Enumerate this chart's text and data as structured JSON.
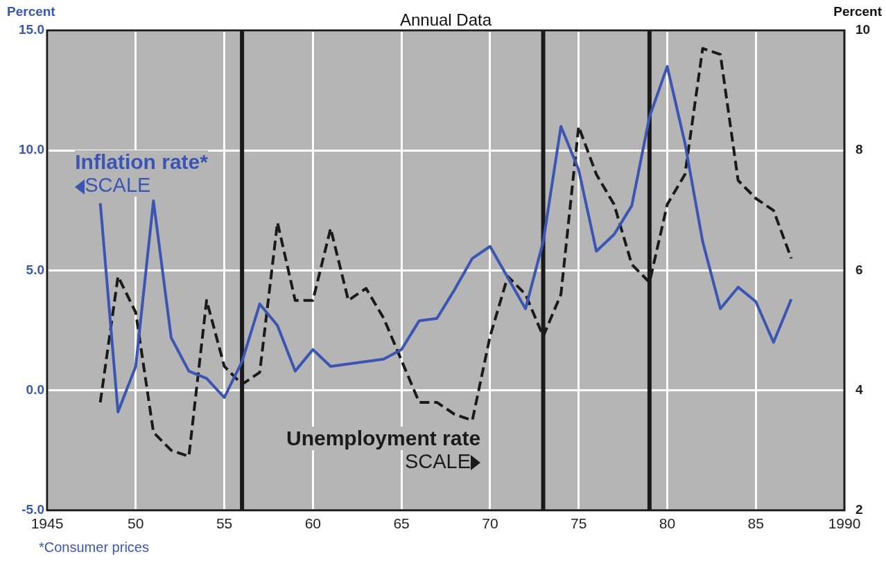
{
  "chart_data": {
    "type": "line",
    "title": "Annual Data",
    "ylabel": "Percent",
    "y2label": "Percent",
    "annotations": [
      "SCALE",
      "SCALE",
      "*Consumer prices"
    ],
    "x": [
      1948,
      1949,
      1950,
      1951,
      1952,
      1953,
      1954,
      1955,
      1956,
      1957,
      1958,
      1959,
      1960,
      1961,
      1962,
      1963,
      1964,
      1965,
      1966,
      1967,
      1968,
      1969,
      1970,
      1971,
      1972,
      1973,
      1974,
      1975,
      1976,
      1977,
      1978,
      1979,
      1980,
      1981,
      1982,
      1983,
      1984,
      1985,
      1986,
      1987
    ],
    "series": [
      {
        "name": "Inflation rate*",
        "color": "#3b55b3",
        "line_style": "solid",
        "values": [
          7.8,
          -0.9,
          1.0,
          7.9,
          2.2,
          0.8,
          0.5,
          -0.3,
          1.2,
          3.6,
          2.7,
          0.8,
          1.7,
          1.0,
          1.1,
          1.2,
          1.3,
          1.7,
          2.9,
          3.0,
          4.2,
          5.5,
          6.0,
          4.7,
          3.4,
          6.2,
          11.0,
          9.2,
          5.8,
          6.5,
          7.7,
          11.4,
          13.5,
          10.3,
          6.2,
          3.4,
          4.3,
          3.7,
          2.0,
          3.8
        ]
      },
      {
        "name": "Unemployment rate",
        "color": "#1a1a1a",
        "axis": "y2",
        "line_style": "dashed",
        "values": [
          3.8,
          5.9,
          5.3,
          3.3,
          3.0,
          2.9,
          5.5,
          4.4,
          4.1,
          4.3,
          6.8,
          5.5,
          5.5,
          6.7,
          5.5,
          5.7,
          5.2,
          4.5,
          3.8,
          3.8,
          3.6,
          3.5,
          4.9,
          5.9,
          5.6,
          4.9,
          5.6,
          8.4,
          7.6,
          7.1,
          6.1,
          5.8,
          7.1,
          7.6,
          9.7,
          9.6,
          7.5,
          7.2,
          7.0,
          6.2
        ]
      }
    ],
    "xlim": [
      1945,
      1990
    ],
    "xticks": [
      1945,
      {
        "value": 1950,
        "label": "50"
      },
      {
        "value": 1955,
        "label": "55"
      },
      {
        "value": 1960,
        "label": "60"
      },
      {
        "value": 1965,
        "label": "65"
      },
      {
        "value": 1970,
        "label": "70"
      },
      {
        "value": 1975,
        "label": "75"
      },
      {
        "value": 1980,
        "label": "80"
      },
      {
        "value": 1985,
        "label": "85"
      },
      1990
    ],
    "ylim": [
      -5,
      15
    ],
    "yticks": [
      {
        "value": -5,
        "label": "-5.0"
      },
      {
        "value": 0,
        "label": "0.0"
      },
      {
        "value": 5,
        "label": "5.0"
      },
      {
        "value": 10,
        "label": "10.0"
      },
      {
        "value": 15,
        "label": "15.0"
      }
    ],
    "y2lim": [
      2,
      10
    ],
    "y2ticks": [
      2,
      4,
      6,
      8,
      10
    ],
    "ref_lines": [
      {
        "axis": "x",
        "value": 1956,
        "color": "#1a1a1a"
      },
      {
        "axis": "x",
        "value": 1973,
        "color": "#1a1a1a"
      },
      {
        "axis": "x",
        "value": 1979,
        "color": "#1a1a1a"
      }
    ],
    "grid": true,
    "legend": false,
    "marker": "none"
  }
}
